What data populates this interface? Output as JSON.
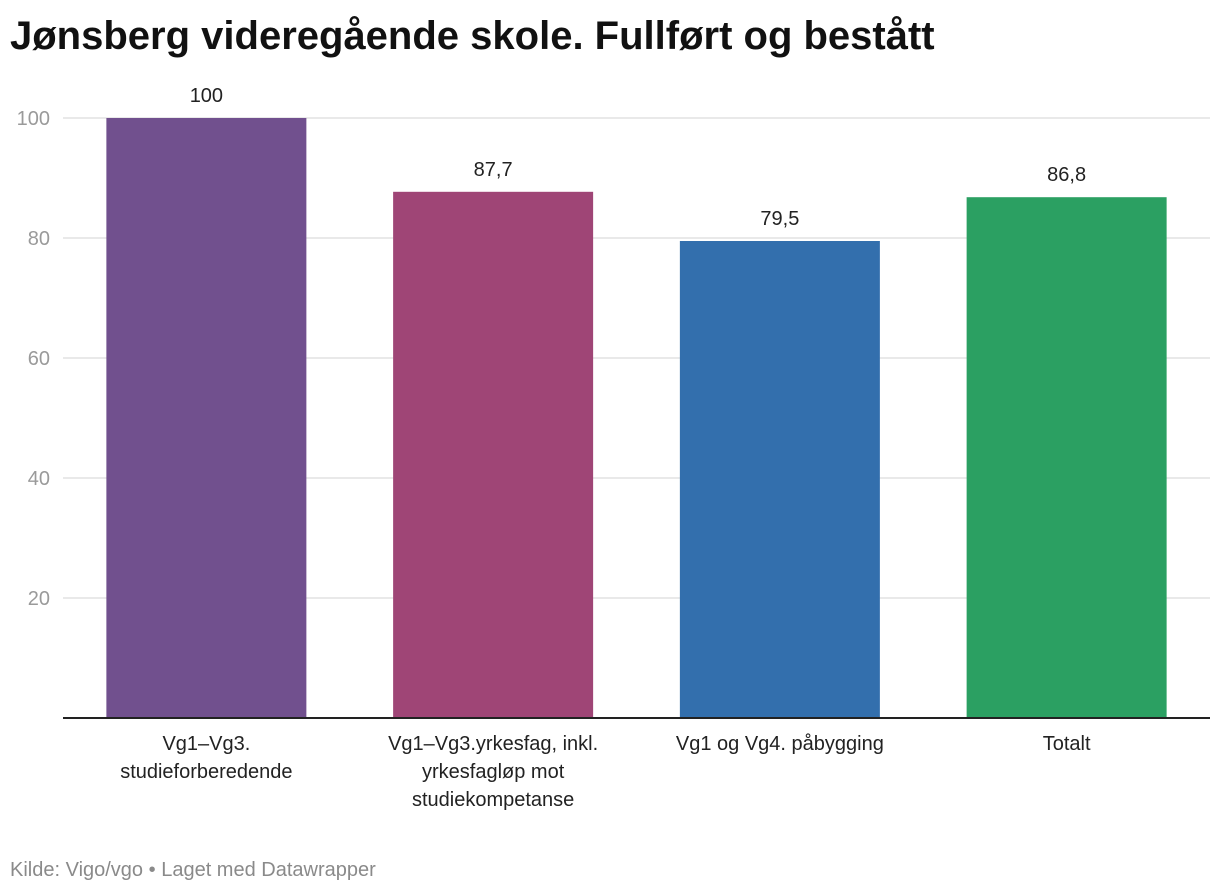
{
  "title": "Jønsberg videregående skole. Fullført og bestått",
  "footer": {
    "source": "Kilde: Vigo/vgo",
    "separator": "•",
    "credit": "Laget med Datawrapper"
  },
  "chart_data": {
    "type": "bar",
    "categories": [
      [
        "Vg1–Vg3.",
        "studieforberedende"
      ],
      [
        "Vg1–Vg3.yrkesfag, inkl.",
        "yrkesfagløp mot",
        "studiekompetanse"
      ],
      [
        "Vg1 og Vg4. påbygging"
      ],
      [
        "Totalt"
      ]
    ],
    "values": [
      100,
      87.7,
      79.5,
      86.8
    ],
    "value_labels": [
      "100",
      "87,7",
      "79,5",
      "86,8"
    ],
    "colors": [
      "#71508e",
      "#9f4576",
      "#336fad",
      "#2ba062"
    ],
    "yticks": [
      20,
      40,
      60,
      80,
      100
    ],
    "ylim": [
      0,
      100
    ],
    "grid": true,
    "legend": "none"
  }
}
